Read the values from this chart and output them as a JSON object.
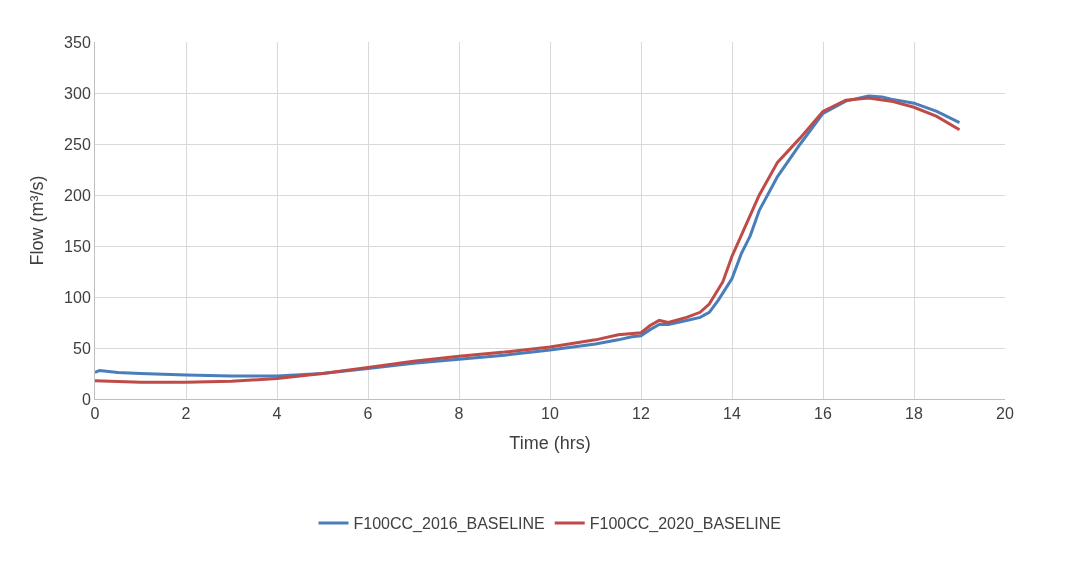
{
  "chart_data": {
    "type": "line",
    "xlabel": "Time (hrs)",
    "ylabel": "Flow (m³/s)",
    "xlim": [
      0,
      20
    ],
    "xticks": [
      0,
      2,
      4,
      6,
      8,
      10,
      12,
      14,
      16,
      18,
      20
    ],
    "ylim": [
      0,
      350
    ],
    "yticks": [
      0,
      50,
      100,
      150,
      200,
      250,
      300,
      350
    ],
    "grid": true,
    "legend": "bottom",
    "marker": "none",
    "line_style": "solid",
    "series": [
      {
        "name": "F100CC_2016_BASELINE",
        "color": "#4a7ebb",
        "x": [
          0,
          0.1,
          0.5,
          1,
          2,
          3,
          4,
          5,
          6,
          7,
          8,
          9,
          10,
          11,
          11.5,
          11.8,
          12,
          12.2,
          12.4,
          12.6,
          13,
          13.3,
          13.5,
          13.7,
          14,
          14.2,
          14.4,
          14.6,
          15,
          15.5,
          16,
          16.5,
          17,
          17.3,
          17.5,
          18,
          18.5,
          19
        ],
        "values": [
          26,
          28,
          26,
          25,
          23.5,
          22.5,
          22.5,
          25,
          30,
          35,
          39,
          43,
          48,
          54,
          58,
          61,
          62,
          68,
          73,
          73,
          77,
          80,
          85,
          97,
          118,
          142,
          160,
          185,
          218,
          250,
          280,
          292,
          297,
          296,
          294,
          290,
          282,
          271
        ]
      },
      {
        "name": "F100CC_2020_BASELINE",
        "color": "#be4b48",
        "x": [
          0,
          1,
          2,
          3,
          4,
          5,
          6,
          7,
          8,
          9,
          10,
          11,
          11.5,
          12,
          12.2,
          12.4,
          12.6,
          13,
          13.3,
          13.5,
          13.8,
          14,
          14.3,
          14.6,
          15,
          15.5,
          16,
          16.5,
          17,
          17.5,
          18,
          18.5,
          19
        ],
        "values": [
          18,
          16.5,
          16.5,
          17.5,
          20,
          25,
          31,
          37,
          42,
          46,
          51,
          58,
          63,
          65,
          72,
          77,
          75,
          80,
          85,
          93,
          115,
          140,
          170,
          200,
          232,
          256,
          282,
          293,
          295,
          292,
          286,
          277,
          264
        ]
      }
    ]
  }
}
